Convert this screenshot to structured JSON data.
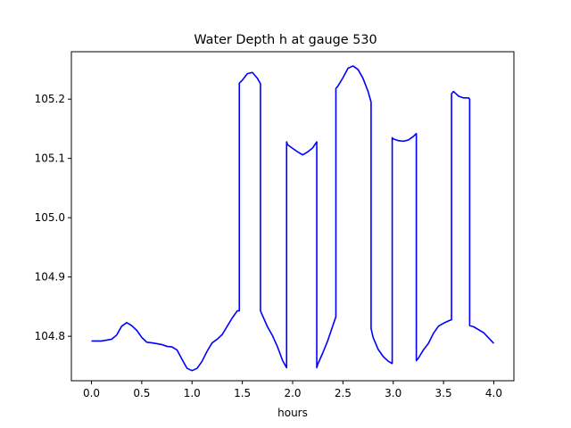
{
  "chart_data": {
    "type": "line",
    "title": "Water Depth h at gauge 530",
    "xlabel": "hours",
    "ylabel": "",
    "xlim": [
      -0.2,
      4.2
    ],
    "ylim": [
      104.725,
      105.28
    ],
    "grid": false,
    "legend": "none",
    "x_ticks": [
      0.0,
      0.5,
      1.0,
      1.5,
      2.0,
      2.5,
      3.0,
      3.5,
      4.0
    ],
    "x_tick_labels": [
      "0.0",
      "0.5",
      "1.0",
      "1.5",
      "2.0",
      "2.5",
      "3.0",
      "3.5",
      "4.0"
    ],
    "y_ticks": [
      104.8,
      104.9,
      105.0,
      105.1,
      105.2
    ],
    "y_tick_labels": [
      "104.8",
      "104.9",
      "105.0",
      "105.1",
      "105.2"
    ],
    "colors": {
      "line": "#0000ff",
      "axes": "#000000",
      "background": "#ffffff"
    },
    "series": [
      {
        "x": [
          0.0,
          0.1,
          0.2,
          0.25,
          0.3,
          0.35,
          0.4,
          0.45,
          0.5,
          0.55,
          0.6,
          0.7,
          0.75,
          0.8,
          0.85,
          0.9,
          0.95,
          1.0,
          1.05,
          1.1,
          1.15,
          1.2,
          1.25,
          1.3,
          1.35,
          1.4,
          1.45,
          1.47,
          1.47,
          1.5,
          1.55,
          1.6,
          1.65,
          1.68,
          1.68,
          1.7,
          1.75,
          1.8,
          1.85,
          1.9,
          1.94,
          1.94,
          1.95,
          2.0,
          2.05,
          2.1,
          2.15,
          2.2,
          2.24,
          2.24,
          2.25,
          2.3,
          2.35,
          2.4,
          2.43,
          2.43,
          2.45,
          2.5,
          2.55,
          2.6,
          2.65,
          2.7,
          2.75,
          2.78,
          2.78,
          2.8,
          2.85,
          2.9,
          2.95,
          2.99,
          2.99,
          3.0,
          3.05,
          3.1,
          3.15,
          3.2,
          3.23,
          3.23,
          3.25,
          3.3,
          3.35,
          3.4,
          3.45,
          3.5,
          3.55,
          3.58,
          3.58,
          3.6,
          3.65,
          3.7,
          3.75,
          3.76,
          3.76,
          3.8,
          3.9,
          4.0
        ],
        "y": [
          104.792,
          104.792,
          104.795,
          104.802,
          104.817,
          104.823,
          104.818,
          104.81,
          104.798,
          104.79,
          104.789,
          104.786,
          104.783,
          104.782,
          104.777,
          104.761,
          104.746,
          104.742,
          104.746,
          104.758,
          104.775,
          104.789,
          104.795,
          104.803,
          104.817,
          104.831,
          104.843,
          104.843,
          105.227,
          105.232,
          105.243,
          105.245,
          105.235,
          105.226,
          104.843,
          104.835,
          104.816,
          104.801,
          104.782,
          104.759,
          104.747,
          105.128,
          105.123,
          105.117,
          105.111,
          105.106,
          105.111,
          105.118,
          105.128,
          104.747,
          104.753,
          104.772,
          104.793,
          104.818,
          104.833,
          105.218,
          105.222,
          105.236,
          105.252,
          105.256,
          105.25,
          105.235,
          105.213,
          105.195,
          104.813,
          104.798,
          104.778,
          104.766,
          104.758,
          104.754,
          105.135,
          105.133,
          105.13,
          105.129,
          105.131,
          105.137,
          105.142,
          104.759,
          104.763,
          104.777,
          104.788,
          104.805,
          104.817,
          104.822,
          104.826,
          104.828,
          105.209,
          105.213,
          105.205,
          105.202,
          105.202,
          105.2,
          104.818,
          104.816,
          104.806,
          104.788
        ]
      }
    ]
  }
}
